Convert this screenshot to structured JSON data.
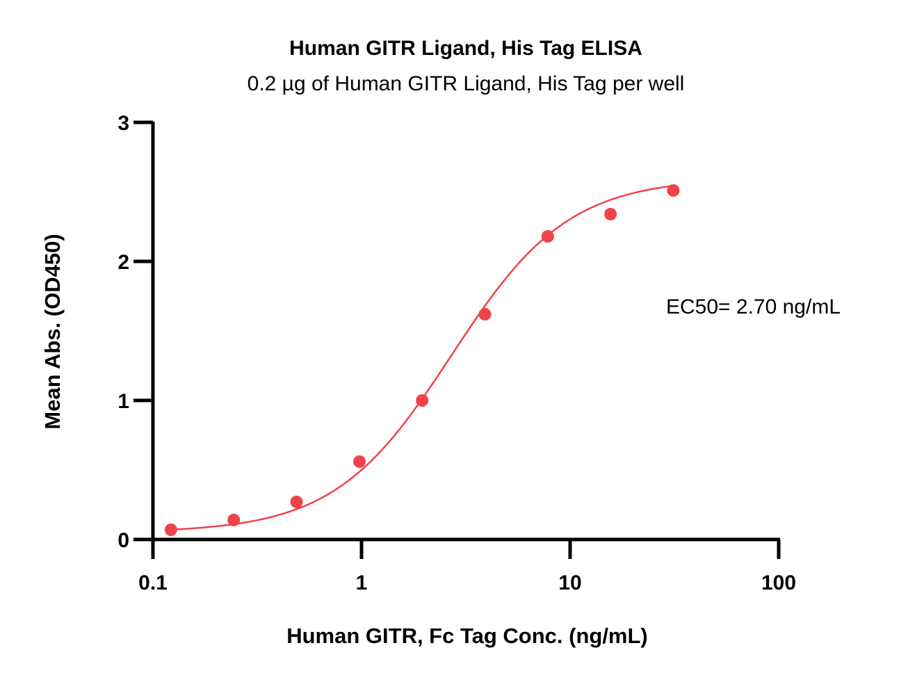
{
  "chart_data": {
    "type": "scatter",
    "title": "Human GITR Ligand, His Tag ELISA",
    "subtitle": "0.2 µg of Human GITR Ligand, His Tag per well",
    "xlabel": "Human GITR, Fc Tag Conc. (ng/mL)",
    "ylabel": "Mean Abs. (OD450)",
    "x_scale": "log",
    "xlim": [
      0.1,
      100
    ],
    "ylim": [
      0,
      3
    ],
    "x_ticks": [
      0.1,
      1,
      10,
      100
    ],
    "x_tick_labels": [
      "0.1",
      "1",
      "10",
      "100"
    ],
    "y_ticks": [
      0,
      1,
      2,
      3
    ],
    "y_tick_labels": [
      "0",
      "1",
      "2",
      "3"
    ],
    "grid": false,
    "legend": "none",
    "series": [
      {
        "color": "#f0424a",
        "x": [
          0.122,
          0.244,
          0.488,
          0.977,
          1.953,
          3.906,
          7.813,
          15.625,
          31.25
        ],
        "y": [
          0.07,
          0.14,
          0.27,
          0.56,
          1.0,
          1.62,
          2.18,
          2.34,
          2.51
        ],
        "fit": {
          "model": "4PL",
          "bottom": 0.05,
          "top": 2.6,
          "ec50": 2.7,
          "hill": 1.55
        }
      }
    ],
    "annotations": [
      {
        "text": "EC50= 2.70 ng/mL"
      }
    ]
  }
}
